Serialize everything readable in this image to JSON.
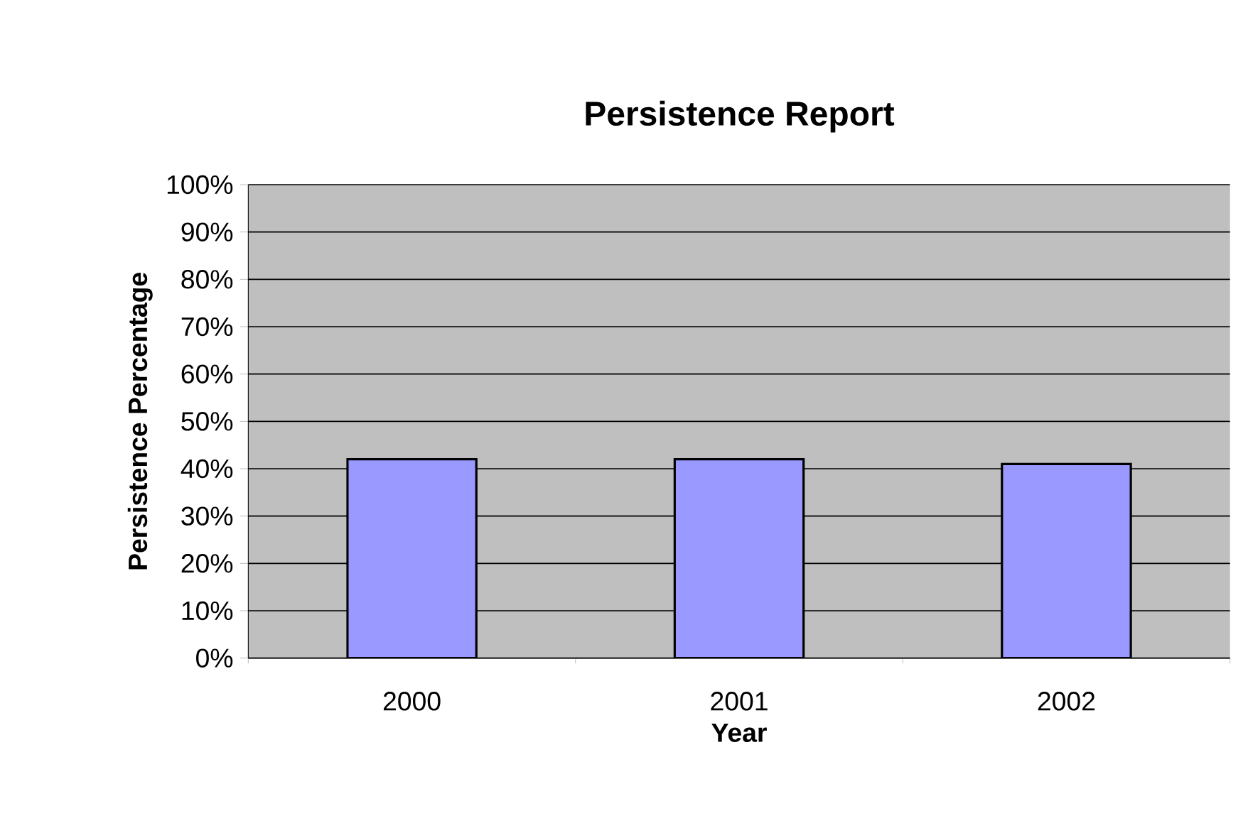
{
  "chart_data": {
    "type": "bar",
    "title": "Persistence Report",
    "xlabel": "Year",
    "ylabel": "Persistence Percentage",
    "categories": [
      "2000",
      "2001",
      "2002"
    ],
    "values": [
      42,
      42,
      41
    ],
    "color": "#9999ff",
    "ylim": [
      0,
      100
    ],
    "yticks": [
      {
        "value": 0,
        "label": "0%"
      },
      {
        "value": 10,
        "label": "10%"
      },
      {
        "value": 20,
        "label": "20%"
      },
      {
        "value": 30,
        "label": "30%"
      },
      {
        "value": 40,
        "label": "40%"
      },
      {
        "value": 50,
        "label": "50%"
      },
      {
        "value": 60,
        "label": "60%"
      },
      {
        "value": 70,
        "label": "70%"
      },
      {
        "value": 80,
        "label": "80%"
      },
      {
        "value": 90,
        "label": "90%"
      },
      {
        "value": 100,
        "label": "100%"
      }
    ],
    "grid": "y"
  }
}
